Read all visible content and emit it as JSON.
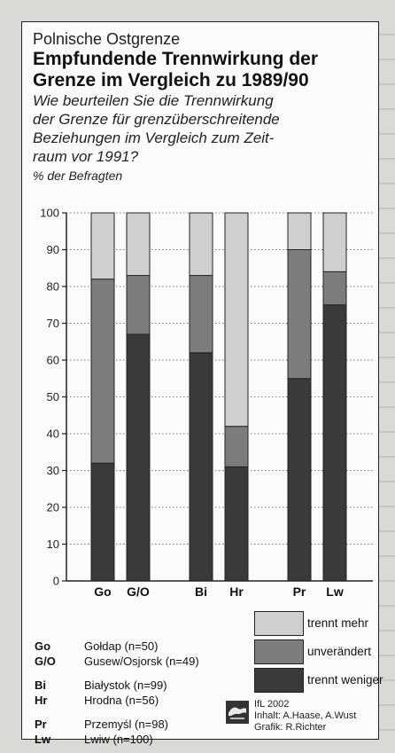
{
  "header": {
    "kicker": "Polnische Ostgrenze",
    "title_line1": "Empfundende Trennwirkung der",
    "title_line2": "Grenze im Vergleich zu 1989/90",
    "question_line1": "Wie beurteilen Sie die Trennwirkung",
    "question_line2": "der Grenze für grenzüberschreitende",
    "question_line3": "Beziehungen im Vergleich zum Zeit-",
    "question_line4": "raum vor 1991?",
    "unit": "% der Befragten"
  },
  "chart_data": {
    "type": "bar",
    "stacked": true,
    "categories": [
      "Go",
      "G/O",
      "Bi",
      "Hr",
      "Pr",
      "Lw"
    ],
    "series": [
      {
        "name": "trennt weniger",
        "color": "#3a3a3a",
        "values": [
          32,
          67,
          62,
          31,
          55,
          75
        ]
      },
      {
        "name": "unverändert",
        "color": "#7d7d7d",
        "values": [
          50,
          16,
          21,
          11,
          35,
          9
        ]
      },
      {
        "name": "trennt mehr",
        "color": "#cfcfcf",
        "values": [
          18,
          17,
          17,
          58,
          10,
          16
        ]
      }
    ],
    "ylim": [
      0,
      100
    ],
    "yticks": [
      0,
      10,
      20,
      30,
      40,
      50,
      60,
      70,
      80,
      90,
      100
    ],
    "grid": true,
    "legend": "bottom-right"
  },
  "legend_list": [
    {
      "code": "Go",
      "name": "Gołdap (n=50)"
    },
    {
      "code": "G/O",
      "name": "Gusew/Osjorsk (n=49)"
    },
    {
      "code": "Bi",
      "name": "Białystok (n=99)"
    },
    {
      "code": "Hr",
      "name": "Hrodna (n=56)"
    },
    {
      "code": "Pr",
      "name": "Przemyśl (n=98)"
    },
    {
      "code": "Lw",
      "name": "Lwiw (n=100)"
    }
  ],
  "key": {
    "more": "trennt mehr",
    "same": "unverändert",
    "less": "trennt weniger"
  },
  "credit": {
    "line1": "IfL 2002",
    "line2": "Inhalt: A.Haase, A.Wust",
    "line3": "Grafik: R.Richter"
  }
}
